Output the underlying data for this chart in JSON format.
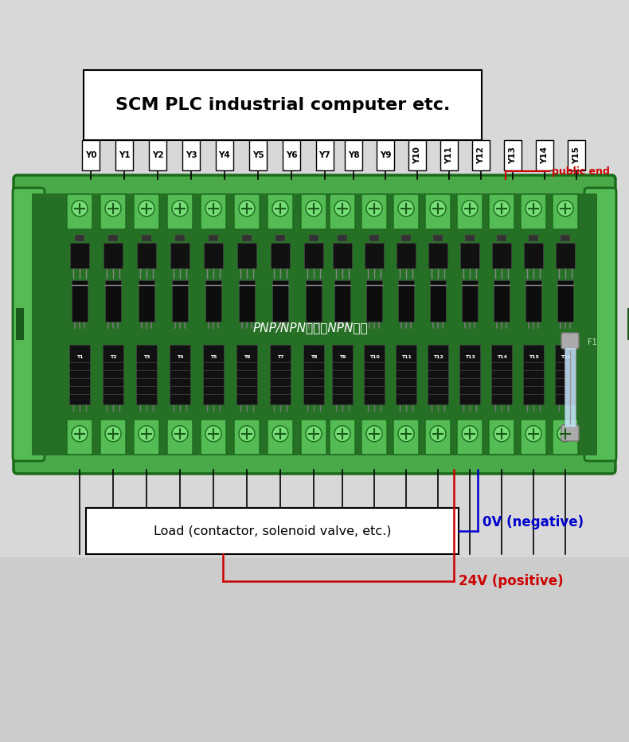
{
  "bg_top": "#d8d8dc",
  "bg_bot": "#b0b0b8",
  "board_green": "#3a9a3a",
  "board_dark_green": "#287028",
  "pcb_green": "#2a7a2a",
  "terminal_green": "#55bb55",
  "terminal_dark": "#1a5a1a",
  "screw_light": "#88ee88",
  "chip_dark": "#111111",
  "title": "SCM PLC industrial computer etc.",
  "center_text": "PNP/NPN输入，NPN输出",
  "load_text": "Load (contactor, solenoid valve, etc.)",
  "public_end": "public end",
  "ov_label": "0V (negative)",
  "v24_label": "24V (positive)",
  "top_labels_left": [
    "Y0",
    "Y1",
    "Y2",
    "Y3",
    "Y4",
    "Y5",
    "Y6",
    "Y7"
  ],
  "top_labels_right": [
    "Y8",
    "Y9",
    "Y10",
    "Y11",
    "Y12",
    "Y13",
    "Y14",
    "Y15"
  ],
  "red": "#cc0000",
  "blue": "#0000cc"
}
